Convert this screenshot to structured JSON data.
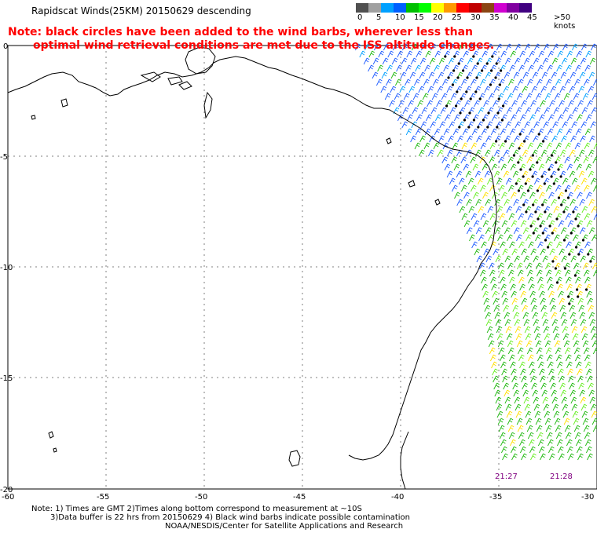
{
  "header": {
    "title": "Rapidscat Winds(25KM) 20150629 descending"
  },
  "note": {
    "line1": "Note: black circles have been added to the wind barbs, wherever less than",
    "line2": "optimal wind retrieval conditions are met due to the ISS altitude changes."
  },
  "legend": {
    "colors": [
      "#505050",
      "#a0a0a0",
      "#00a0ff",
      "#0060ff",
      "#00c000",
      "#00ff00",
      "#ffff00",
      "#ff9900",
      "#ff0000",
      "#c00000",
      "#8b4513",
      "#d000d0",
      "#8000a0",
      "#400080"
    ],
    "labels": [
      "0",
      "5",
      "10",
      "15",
      "20",
      "25",
      "30",
      "35",
      "40",
      "45",
      ">50 knots"
    ]
  },
  "map": {
    "y_ticks": [
      "0",
      "-5",
      "-10",
      "-15",
      "-20"
    ],
    "x_ticks": [
      "-60",
      "-55",
      "-50",
      "-45",
      "-40",
      "-35",
      "-30"
    ],
    "timestamps": [
      "21:27",
      "21:28"
    ],
    "barb_colors": {
      "blue": "#1e5bff",
      "cyan": "#00a0ff",
      "green": "#1fb80f",
      "lime": "#66ee22",
      "yellow": "#ffe000",
      "orange": "#ff9900",
      "black": "#000000"
    }
  },
  "footer": {
    "line1": "Note: 1) Times are GMT 2)Times along bottom correspond to measurement at ~10S",
    "line2": "3)Data buffer is 22 hrs from 20150629 4) Black wind barbs indicate possible contamination",
    "line3": "NOAA/NESDIS/Center for Satellite Applications and Research"
  }
}
